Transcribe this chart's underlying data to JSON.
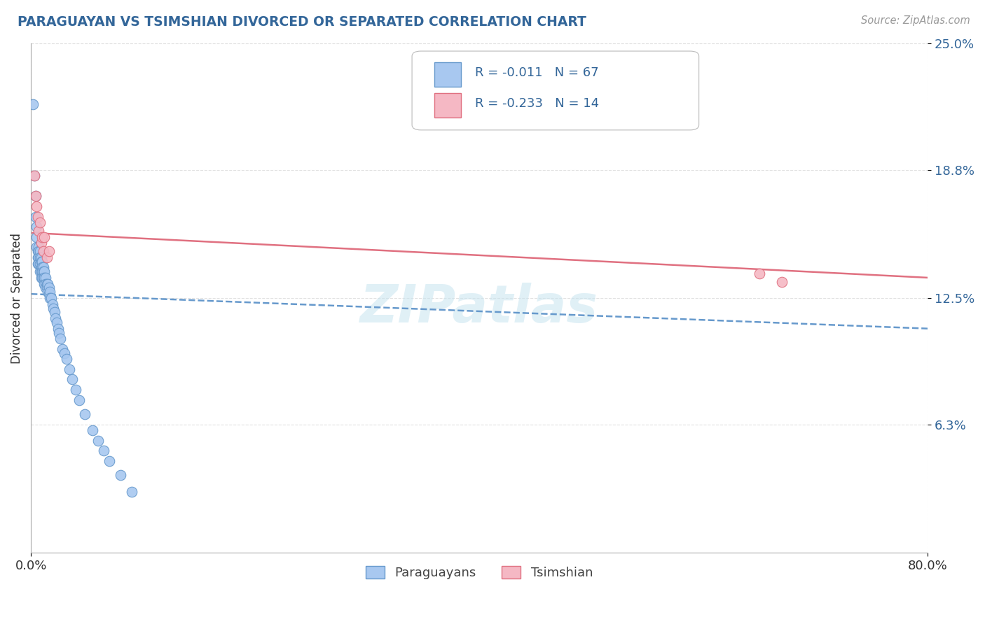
{
  "title": "PARAGUAYAN VS TSIMSHIAN DIVORCED OR SEPARATED CORRELATION CHART",
  "source": "Source: ZipAtlas.com",
  "ylabel": "Divorced or Separated",
  "xmin": 0.0,
  "xmax": 0.8,
  "ymin": 0.0,
  "ymax": 0.25,
  "yticks": [
    0.063,
    0.125,
    0.188,
    0.25
  ],
  "ytick_labels": [
    "6.3%",
    "12.5%",
    "18.8%",
    "25.0%"
  ],
  "xtick_labels": [
    "0.0%",
    "80.0%"
  ],
  "xticks": [
    0.0,
    0.8
  ],
  "legend_labels": [
    "Paraguayans",
    "Tsimshian"
  ],
  "paraguayan_color": "#a8c8f0",
  "paraguayan_edge_color": "#6699cc",
  "tsimshian_color": "#f5b8c4",
  "tsimshian_edge_color": "#e07080",
  "blue_line_color": "#6699cc",
  "pink_line_color": "#e07080",
  "R_paraguayan": -0.011,
  "N_paraguayan": 67,
  "R_tsimshian": -0.233,
  "N_tsimshian": 14,
  "background_color": "#ffffff",
  "grid_color": "#cccccc",
  "title_color": "#336699",
  "legend_text_color": "#336699",
  "paraguayan_x": [
    0.002,
    0.003,
    0.004,
    0.004,
    0.005,
    0.005,
    0.005,
    0.006,
    0.006,
    0.006,
    0.007,
    0.007,
    0.007,
    0.007,
    0.008,
    0.008,
    0.008,
    0.008,
    0.009,
    0.009,
    0.009,
    0.009,
    0.009,
    0.01,
    0.01,
    0.01,
    0.01,
    0.011,
    0.011,
    0.011,
    0.012,
    0.012,
    0.012,
    0.013,
    0.013,
    0.013,
    0.014,
    0.014,
    0.015,
    0.015,
    0.016,
    0.016,
    0.017,
    0.017,
    0.018,
    0.019,
    0.02,
    0.021,
    0.022,
    0.023,
    0.024,
    0.025,
    0.026,
    0.028,
    0.03,
    0.032,
    0.034,
    0.037,
    0.04,
    0.043,
    0.048,
    0.055,
    0.06,
    0.065,
    0.07,
    0.08,
    0.09
  ],
  "paraguayan_y": [
    0.22,
    0.185,
    0.175,
    0.165,
    0.16,
    0.155,
    0.15,
    0.148,
    0.145,
    0.142,
    0.15,
    0.148,
    0.145,
    0.142,
    0.148,
    0.145,
    0.142,
    0.138,
    0.145,
    0.143,
    0.14,
    0.138,
    0.135,
    0.143,
    0.14,
    0.138,
    0.135,
    0.14,
    0.138,
    0.135,
    0.138,
    0.135,
    0.132,
    0.135,
    0.132,
    0.13,
    0.132,
    0.13,
    0.132,
    0.128,
    0.13,
    0.127,
    0.128,
    0.125,
    0.125,
    0.122,
    0.12,
    0.118,
    0.115,
    0.113,
    0.11,
    0.108,
    0.105,
    0.1,
    0.098,
    0.095,
    0.09,
    0.085,
    0.08,
    0.075,
    0.068,
    0.06,
    0.055,
    0.05,
    0.045,
    0.038,
    0.03
  ],
  "tsimshian_x": [
    0.003,
    0.004,
    0.005,
    0.006,
    0.007,
    0.008,
    0.009,
    0.01,
    0.011,
    0.012,
    0.014,
    0.016,
    0.65,
    0.67
  ],
  "tsimshian_y": [
    0.185,
    0.175,
    0.17,
    0.165,
    0.158,
    0.162,
    0.152,
    0.155,
    0.148,
    0.155,
    0.145,
    0.148,
    0.137,
    0.133
  ],
  "blue_trend_x0": 0.0,
  "blue_trend_y0": 0.127,
  "blue_trend_x1": 0.8,
  "blue_trend_y1": 0.11,
  "pink_trend_x0": 0.0,
  "pink_trend_y0": 0.157,
  "pink_trend_x1": 0.8,
  "pink_trend_y1": 0.135
}
